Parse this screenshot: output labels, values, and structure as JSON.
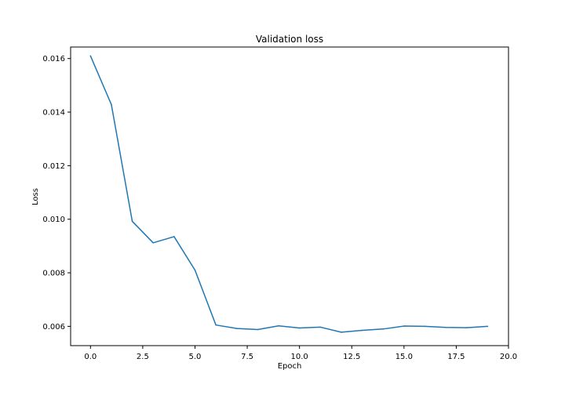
{
  "chart_data": {
    "type": "line",
    "title": "Validation loss",
    "xlabel": "Epoch",
    "ylabel": "Loss",
    "xlim": [
      -0.95,
      20.0
    ],
    "ylim": [
      0.00528,
      0.01643
    ],
    "xticks": [
      0.0,
      2.5,
      5.0,
      7.5,
      10.0,
      12.5,
      15.0,
      17.5,
      20.0
    ],
    "xtick_labels": [
      "0.0",
      "2.5",
      "5.0",
      "7.5",
      "10.0",
      "12.5",
      "15.0",
      "17.5",
      "20.0"
    ],
    "yticks": [
      0.006,
      0.008,
      0.01,
      0.012,
      0.014,
      0.016
    ],
    "ytick_labels": [
      "0.006",
      "0.008",
      "0.010",
      "0.012",
      "0.014",
      "0.016"
    ],
    "grid": false,
    "series": [
      {
        "color": "#1f77b4",
        "x": [
          0,
          1,
          2,
          3,
          4,
          5,
          6,
          7,
          8,
          9,
          10,
          11,
          12,
          13,
          14,
          15,
          16,
          17,
          18,
          19
        ],
        "y": [
          0.0161,
          0.01428,
          0.00992,
          0.00912,
          0.00935,
          0.0081,
          0.00605,
          0.00592,
          0.00588,
          0.00602,
          0.00594,
          0.00597,
          0.00578,
          0.00585,
          0.0059,
          0.00601,
          0.006,
          0.00596,
          0.00595,
          0.006
        ]
      }
    ]
  }
}
